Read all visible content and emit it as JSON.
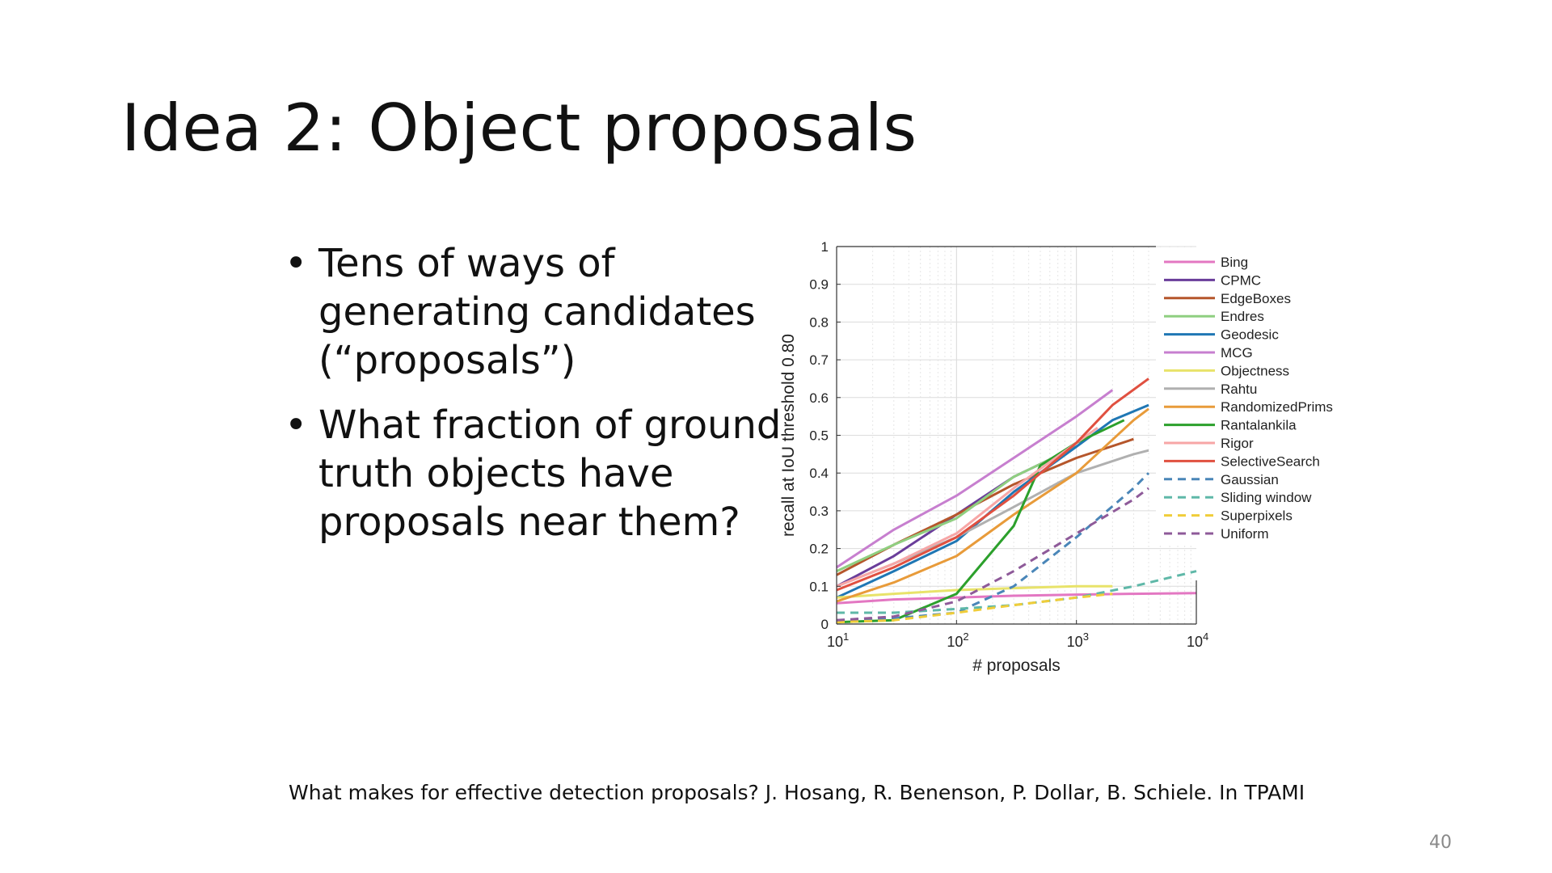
{
  "slide": {
    "title": "Idea 2: Object proposals",
    "bullets": [
      "Tens of ways of generating candidates (“proposals”)",
      "What fraction of ground truth objects have proposals near them?"
    ],
    "citation": "What makes for effective detection proposals? J. Hosang, R. Benenson, P. Dollar, B. Schiele. In TPAMI",
    "page_number": "40"
  },
  "chart_data": {
    "type": "line",
    "title": "",
    "xlabel": "# proposals",
    "ylabel": "recall at IoU threshold 0.80",
    "xscale": "log",
    "xlim": [
      10,
      10000
    ],
    "ylim": [
      0,
      1
    ],
    "x_ticks": [
      {
        "base": "10",
        "exp": "1"
      },
      {
        "base": "10",
        "exp": "2"
      },
      {
        "base": "10",
        "exp": "3"
      },
      {
        "base": "10",
        "exp": "4"
      }
    ],
    "y_ticks": [
      "0",
      "0.1",
      "0.2",
      "0.3",
      "0.4",
      "0.5",
      "0.6",
      "0.7",
      "0.8",
      "0.9",
      "1"
    ],
    "grid": true,
    "legend_position": "right",
    "series": [
      {
        "name": "Bing",
        "color": "#e377c2",
        "dash": false,
        "points": [
          [
            10,
            0.055
          ],
          [
            30,
            0.065
          ],
          [
            100,
            0.07
          ],
          [
            300,
            0.075
          ],
          [
            1000,
            0.078
          ],
          [
            3000,
            0.08
          ],
          [
            10000,
            0.082
          ]
        ]
      },
      {
        "name": "CPMC",
        "color": "#6a3d9a",
        "dash": false,
        "points": [
          [
            10,
            0.1
          ],
          [
            30,
            0.18
          ],
          [
            100,
            0.29
          ],
          [
            300,
            0.39
          ],
          [
            1000,
            0.47
          ]
        ]
      },
      {
        "name": "EdgeBoxes",
        "color": "#b5562b",
        "dash": false,
        "points": [
          [
            10,
            0.13
          ],
          [
            30,
            0.21
          ],
          [
            100,
            0.29
          ],
          [
            300,
            0.37
          ],
          [
            1000,
            0.44
          ],
          [
            3000,
            0.49
          ]
        ]
      },
      {
        "name": "Endres",
        "color": "#8fcf80",
        "dash": false,
        "points": [
          [
            10,
            0.14
          ],
          [
            30,
            0.21
          ],
          [
            100,
            0.28
          ],
          [
            300,
            0.39
          ],
          [
            1000,
            0.47
          ]
        ]
      },
      {
        "name": "Geodesic",
        "color": "#1f77b4",
        "dash": false,
        "points": [
          [
            10,
            0.07
          ],
          [
            30,
            0.14
          ],
          [
            100,
            0.22
          ],
          [
            300,
            0.35
          ],
          [
            1000,
            0.47
          ],
          [
            2000,
            0.54
          ],
          [
            4000,
            0.58
          ]
        ]
      },
      {
        "name": "MCG",
        "color": "#c77fcf",
        "dash": false,
        "points": [
          [
            10,
            0.15
          ],
          [
            30,
            0.25
          ],
          [
            100,
            0.34
          ],
          [
            300,
            0.44
          ],
          [
            1000,
            0.55
          ],
          [
            2000,
            0.62
          ]
        ]
      },
      {
        "name": "Objectness",
        "color": "#e8e36a",
        "dash": false,
        "points": [
          [
            10,
            0.07
          ],
          [
            30,
            0.08
          ],
          [
            100,
            0.09
          ],
          [
            300,
            0.095
          ],
          [
            1000,
            0.1
          ],
          [
            2000,
            0.1
          ]
        ]
      },
      {
        "name": "Rahtu",
        "color": "#b0b0b0",
        "dash": false,
        "points": [
          [
            10,
            0.1
          ],
          [
            30,
            0.16
          ],
          [
            100,
            0.23
          ],
          [
            300,
            0.31
          ],
          [
            1000,
            0.4
          ],
          [
            3000,
            0.45
          ],
          [
            4000,
            0.46
          ]
        ]
      },
      {
        "name": "RandomizedPrims",
        "color": "#e89b3a",
        "dash": false,
        "points": [
          [
            10,
            0.06
          ],
          [
            30,
            0.11
          ],
          [
            100,
            0.18
          ],
          [
            300,
            0.29
          ],
          [
            1000,
            0.4
          ],
          [
            3000,
            0.54
          ],
          [
            4000,
            0.57
          ]
        ]
      },
      {
        "name": "Rantalankila",
        "color": "#2ca02c",
        "dash": false,
        "points": [
          [
            10,
            0.005
          ],
          [
            30,
            0.01
          ],
          [
            100,
            0.08
          ],
          [
            300,
            0.26
          ],
          [
            500,
            0.42
          ],
          [
            1000,
            0.48
          ],
          [
            2500,
            0.54
          ]
        ]
      },
      {
        "name": "Rigor",
        "color": "#f7a6a6",
        "dash": false,
        "points": [
          [
            10,
            0.1
          ],
          [
            30,
            0.16
          ],
          [
            100,
            0.24
          ],
          [
            300,
            0.36
          ],
          [
            1000,
            0.48
          ],
          [
            1500,
            0.52
          ]
        ]
      },
      {
        "name": "SelectiveSearch",
        "color": "#e05040",
        "dash": false,
        "points": [
          [
            10,
            0.09
          ],
          [
            30,
            0.15
          ],
          [
            100,
            0.23
          ],
          [
            300,
            0.34
          ],
          [
            1000,
            0.48
          ],
          [
            2000,
            0.58
          ],
          [
            4000,
            0.65
          ]
        ]
      },
      {
        "name": "Gaussian",
        "color": "#4a86b8",
        "dash": true,
        "points": [
          [
            10,
            0.01
          ],
          [
            30,
            0.015
          ],
          [
            100,
            0.03
          ],
          [
            300,
            0.1
          ],
          [
            1000,
            0.23
          ],
          [
            3000,
            0.36
          ],
          [
            4000,
            0.4
          ]
        ]
      },
      {
        "name": "Sliding window",
        "color": "#5fb8a8",
        "dash": true,
        "points": [
          [
            10,
            0.03
          ],
          [
            30,
            0.03
          ],
          [
            100,
            0.04
          ],
          [
            300,
            0.05
          ],
          [
            1000,
            0.07
          ],
          [
            3000,
            0.1
          ],
          [
            10000,
            0.14
          ]
        ]
      },
      {
        "name": "Superpixels",
        "color": "#f0cd3a",
        "dash": true,
        "points": [
          [
            10,
            0.005
          ],
          [
            30,
            0.01
          ],
          [
            100,
            0.03
          ],
          [
            300,
            0.05
          ],
          [
            1000,
            0.07
          ],
          [
            2000,
            0.08
          ]
        ]
      },
      {
        "name": "Uniform",
        "color": "#8e5a99",
        "dash": true,
        "points": [
          [
            10,
            0.01
          ],
          [
            30,
            0.02
          ],
          [
            100,
            0.06
          ],
          [
            300,
            0.14
          ],
          [
            1000,
            0.24
          ],
          [
            3000,
            0.33
          ],
          [
            4000,
            0.36
          ]
        ]
      }
    ]
  }
}
